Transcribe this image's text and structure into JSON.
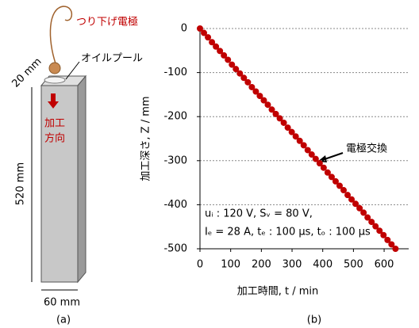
{
  "diagram": {
    "electrode_label": "つり下げ電極",
    "oil_label": "オイルプール",
    "top_dim": "20 mm",
    "direction_lines": [
      "加工",
      "方向"
    ],
    "height_dim": "520 mm",
    "width_dim": "60 mm",
    "panel_label": "(a)"
  },
  "chart_data": {
    "type": "scatter",
    "panel_label": "(b)",
    "x_label": "加工時間, t / min",
    "y_label": "加工深さ, Z / mm",
    "annotation": "電極交換",
    "conditions": [
      "uᵢ : 120 V, Sᵥ = 80 V,",
      "Iₑ = 28 A, tₑ : 100 µs, tₒ : 100 µs"
    ],
    "xlim": [
      0,
      680
    ],
    "xticks": [
      0,
      100,
      200,
      300,
      400,
      500,
      600
    ],
    "ylim": [
      -500,
      0
    ],
    "yticks": [
      0,
      -100,
      -200,
      -300,
      -400,
      -500
    ],
    "grid": true,
    "series": [
      {
        "color": "#c00000",
        "x": [
          0,
          13,
          26,
          39,
          52,
          65,
          78,
          91,
          104,
          117,
          130,
          143,
          156,
          169,
          182,
          195,
          208,
          221,
          234,
          247,
          260,
          273,
          286,
          299,
          312,
          325,
          338,
          351,
          364,
          377,
          390,
          403,
          416,
          429,
          442,
          455,
          468,
          481,
          494,
          507,
          520,
          533,
          546,
          559,
          572,
          585,
          598,
          611,
          624,
          637
        ],
        "values": [
          0,
          -10,
          -20,
          -31,
          -41,
          -51,
          -61,
          -71,
          -82,
          -92,
          -102,
          -112,
          -122,
          -133,
          -143,
          -153,
          -163,
          -173,
          -184,
          -194,
          -204,
          -214,
          -225,
          -235,
          -245,
          -255,
          -265,
          -276,
          -286,
          -296,
          -306,
          -316,
          -327,
          -337,
          -347,
          -357,
          -367,
          -378,
          -388,
          -398,
          -408,
          -418,
          -429,
          -439,
          -449,
          -459,
          -469,
          -480,
          -490,
          -500
        ]
      }
    ]
  }
}
